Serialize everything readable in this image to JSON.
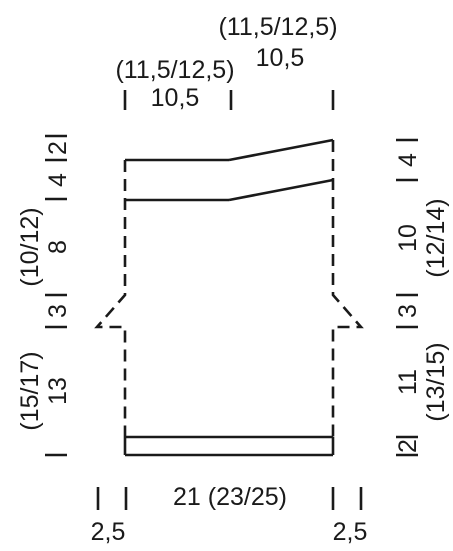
{
  "labels": {
    "top_upper_row1": "(11,5/12,5)",
    "top_upper_row2": "10,5",
    "top_left_row1": "(11,5/12,5)",
    "top_left_row2": "10,5",
    "left_top": "4",
    "left_top_tick": "2",
    "left_mid_range": "(10/12)",
    "left_mid": "8",
    "left_notch": "3",
    "left_low_range": "(15/17)",
    "left_low": "13",
    "right_top": "4",
    "right_mid": "10",
    "right_mid_range": "(12/14)",
    "right_notch": "3",
    "right_low": "11",
    "right_low_range": "(13/15)",
    "right_hem": "2",
    "bottom_width": "21 (23/25)",
    "bottom_left_margin": "2,5",
    "bottom_right_margin": "2,5"
  }
}
